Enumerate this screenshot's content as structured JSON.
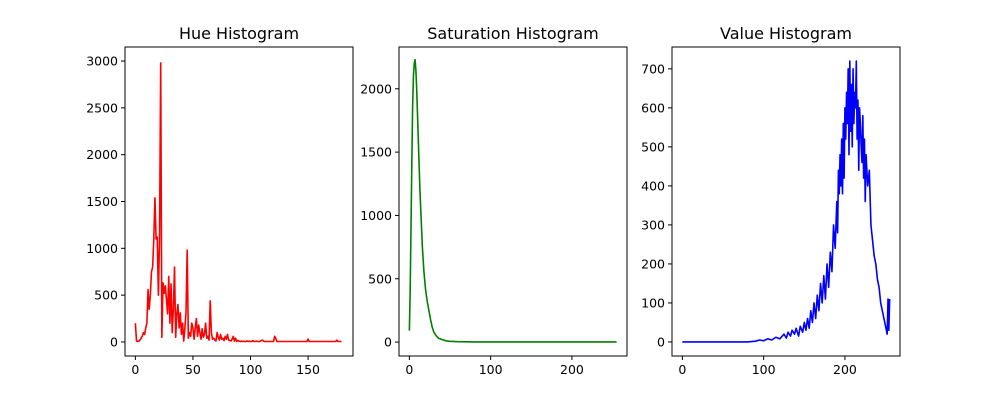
{
  "chart_data": [
    {
      "type": "line",
      "title": "Hue Histogram",
      "xlabel": "",
      "ylabel": "",
      "xlim": [
        -9,
        189
      ],
      "ylim": [
        -150,
        3150
      ],
      "xticks": [
        0,
        50,
        100,
        150
      ],
      "yticks": [
        0,
        500,
        1000,
        1500,
        2000,
        2500,
        3000
      ],
      "color": "#ff0000",
      "grid": false,
      "series": [
        {
          "x": [
            0,
            1,
            2,
            3,
            4,
            5,
            6,
            7,
            8,
            9,
            10,
            11,
            12,
            13,
            14,
            15,
            16,
            17,
            18,
            19,
            20,
            21,
            22,
            23,
            24,
            25,
            26,
            27,
            28,
            29,
            30,
            31,
            32,
            33,
            34,
            35,
            36,
            37,
            38,
            39,
            40,
            41,
            42,
            43,
            44,
            45,
            46,
            47,
            48,
            49,
            50,
            51,
            52,
            53,
            54,
            55,
            56,
            57,
            58,
            59,
            60,
            61,
            62,
            63,
            64,
            65,
            66,
            67,
            68,
            69,
            70,
            71,
            72,
            73,
            74,
            75,
            76,
            77,
            78,
            79,
            80,
            81,
            82,
            83,
            84,
            85,
            86,
            87,
            88,
            89,
            90,
            91,
            92,
            93,
            94,
            95,
            96,
            97,
            98,
            99,
            100,
            101,
            102,
            103,
            104,
            105,
            106,
            107,
            108,
            110,
            112,
            115,
            118,
            120,
            121,
            123,
            126,
            130,
            135,
            140,
            145,
            149,
            150,
            151,
            155,
            160,
            165,
            170,
            174,
            175,
            176,
            179
          ],
          "y": [
            200,
            10,
            5,
            8,
            20,
            40,
            60,
            100,
            80,
            150,
            200,
            560,
            350,
            500,
            750,
            800,
            1100,
            1540,
            1100,
            1120,
            500,
            1120,
            2980,
            50,
            630,
            520,
            600,
            450,
            300,
            700,
            200,
            620,
            100,
            350,
            800,
            50,
            300,
            400,
            150,
            310,
            80,
            200,
            10,
            150,
            320,
            980,
            40,
            100,
            60,
            200,
            150,
            30,
            150,
            250,
            60,
            180,
            100,
            30,
            140,
            50,
            80,
            200,
            40,
            60,
            20,
            440,
            100,
            30,
            40,
            20,
            10,
            100,
            50,
            20,
            80,
            30,
            40,
            15,
            60,
            30,
            80,
            20,
            15,
            10,
            30,
            60,
            10,
            40,
            5,
            15,
            10,
            5,
            8,
            5,
            8,
            5,
            5,
            10,
            5,
            8,
            5,
            5,
            15,
            5,
            5,
            8,
            5,
            5,
            5,
            20,
            5,
            5,
            5,
            5,
            60,
            5,
            5,
            5,
            5,
            5,
            5,
            5,
            30,
            5,
            5,
            5,
            5,
            5,
            5,
            20,
            5,
            5
          ]
        }
      ]
    },
    {
      "type": "line",
      "title": "Saturation Histogram",
      "xlabel": "",
      "ylabel": "",
      "xlim": [
        -12.75,
        267.75
      ],
      "ylim": [
        -110,
        2330
      ],
      "xticks": [
        0,
        100,
        200
      ],
      "yticks": [
        0,
        500,
        1000,
        1500,
        2000
      ],
      "color": "#008000",
      "grid": false,
      "series": [
        {
          "x": [
            0,
            1,
            2,
            3,
            4,
            5,
            6,
            7,
            8,
            9,
            10,
            11,
            12,
            13,
            14,
            15,
            16,
            17,
            18,
            19,
            20,
            22,
            24,
            26,
            28,
            30,
            33,
            36,
            40,
            45,
            50,
            60,
            70,
            80,
            100,
            150,
            200,
            255
          ],
          "y": [
            90,
            400,
            900,
            1400,
            1850,
            2100,
            2200,
            2230,
            2150,
            2000,
            1800,
            1600,
            1400,
            1200,
            1050,
            900,
            750,
            650,
            550,
            480,
            410,
            320,
            250,
            180,
            120,
            80,
            50,
            30,
            20,
            10,
            6,
            3,
            2,
            1,
            1,
            1,
            1,
            1
          ]
        }
      ]
    },
    {
      "type": "line",
      "title": "Value Histogram",
      "xlabel": "",
      "ylabel": "",
      "xlim": [
        -12.75,
        267.75
      ],
      "ylim": [
        -36,
        756
      ],
      "xticks": [
        0,
        100,
        200
      ],
      "yticks": [
        0,
        100,
        200,
        300,
        400,
        500,
        600,
        700
      ],
      "color": "#0000ff",
      "grid": false,
      "series": [
        {
          "x": [
            0,
            20,
            40,
            60,
            80,
            90,
            95,
            100,
            105,
            110,
            115,
            120,
            125,
            128,
            130,
            133,
            135,
            138,
            140,
            143,
            145,
            148,
            150,
            152,
            154,
            156,
            158,
            160,
            162,
            164,
            166,
            168,
            170,
            172,
            174,
            176,
            178,
            180,
            182,
            184,
            186,
            188,
            190,
            191,
            192,
            193,
            194,
            195,
            196,
            197,
            198,
            199,
            200,
            201,
            202,
            203,
            204,
            205,
            206,
            207,
            208,
            209,
            210,
            211,
            212,
            213,
            214,
            215,
            216,
            217,
            218,
            219,
            220,
            221,
            222,
            223,
            224,
            225,
            226,
            228,
            230,
            232,
            234,
            236,
            238,
            240,
            242,
            244,
            246,
            248,
            250,
            252,
            253,
            254,
            255
          ],
          "y": [
            0,
            0,
            0,
            0,
            0,
            2,
            5,
            3,
            8,
            5,
            12,
            8,
            20,
            10,
            25,
            15,
            30,
            20,
            35,
            15,
            40,
            25,
            50,
            30,
            60,
            35,
            80,
            50,
            100,
            60,
            120,
            80,
            150,
            100,
            170,
            110,
            200,
            140,
            230,
            180,
            300,
            240,
            360,
            280,
            440,
            380,
            480,
            400,
            520,
            380,
            560,
            420,
            600,
            520,
            640,
            560,
            700,
            480,
            720,
            540,
            660,
            500,
            700,
            560,
            640,
            600,
            720,
            520,
            620,
            440,
            600,
            560,
            500,
            460,
            580,
            420,
            520,
            360,
            480,
            400,
            440,
            300,
            260,
            220,
            200,
            160,
            140,
            100,
            80,
            60,
            40,
            20,
            110,
            30,
            110
          ]
        }
      ]
    }
  ]
}
